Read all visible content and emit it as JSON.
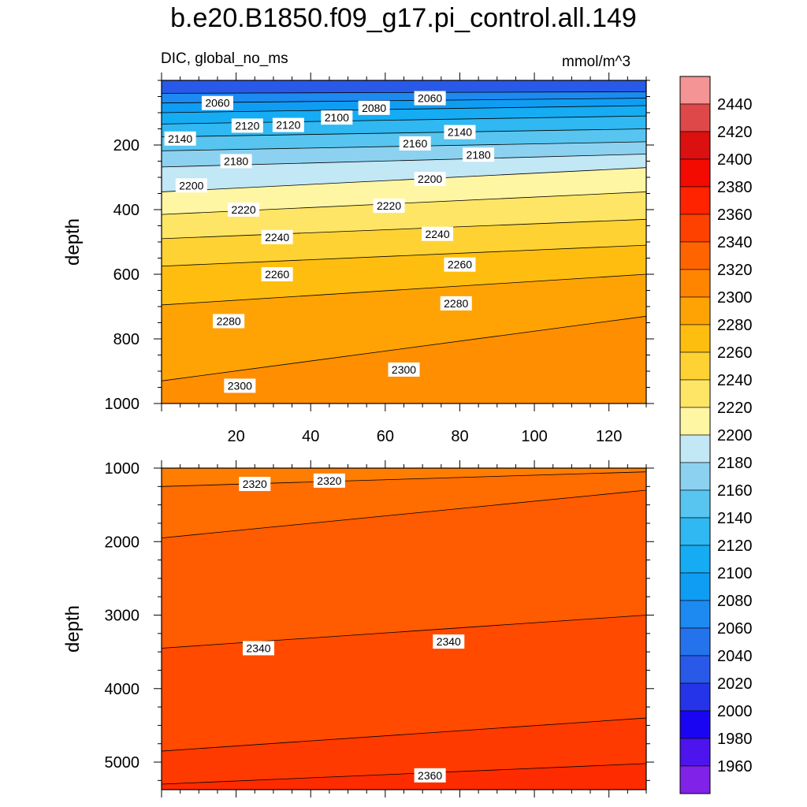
{
  "title": "b.e20.B1850.f09_g17.pi_control.all.149",
  "subtitle_left": "DIC, global_no_ms",
  "subtitle_right": "mmol/m^3",
  "chart_data": [
    {
      "type": "heatmap",
      "panel": "top",
      "variable": "DIC",
      "region": "global_no_ms",
      "units": "mmol/m^3",
      "ylabel": "depth",
      "xlabel": "",
      "xlim": [
        0,
        130
      ],
      "ylim": [
        0,
        1000
      ],
      "y_inverted": true,
      "x_ticks": [
        20,
        40,
        60,
        80,
        100,
        120
      ],
      "y_ticks": [
        200,
        400,
        600,
        800,
        1000
      ],
      "y_tick_labels": [
        "200",
        "400",
        "600",
        "800",
        "1000"
      ],
      "isolines": [
        {
          "level": 2060,
          "y": [
            40,
            35
          ]
        },
        {
          "level": 2080,
          "y": [
            70,
            55
          ]
        },
        {
          "level": 2100,
          "y": [
            100,
            78
          ]
        },
        {
          "level": 2120,
          "y": [
            135,
            110
          ]
        },
        {
          "level": 2140,
          "y": [
            175,
            150
          ]
        },
        {
          "level": 2160,
          "y": [
            218,
            190
          ]
        },
        {
          "level": 2180,
          "y": [
            268,
            228
          ]
        },
        {
          "level": 2200,
          "y": [
            345,
            270
          ]
        },
        {
          "level": 2220,
          "y": [
            415,
            345
          ]
        },
        {
          "level": 2240,
          "y": [
            490,
            430
          ]
        },
        {
          "level": 2260,
          "y": [
            575,
            510
          ]
        },
        {
          "level": 2280,
          "y": [
            695,
            600
          ]
        },
        {
          "level": 2300,
          "y": [
            930,
            730
          ]
        }
      ],
      "contour_labels": [
        {
          "text": "2060",
          "x": 15,
          "y": 70
        },
        {
          "text": "2080",
          "x": 57,
          "y": 85
        },
        {
          "text": "2060",
          "x": 72,
          "y": 55
        },
        {
          "text": "2100",
          "x": 47,
          "y": 115
        },
        {
          "text": "2120",
          "x": 23,
          "y": 140
        },
        {
          "text": "2120",
          "x": 34,
          "y": 138
        },
        {
          "text": "2140",
          "x": 5,
          "y": 180
        },
        {
          "text": "2140",
          "x": 80,
          "y": 160
        },
        {
          "text": "2160",
          "x": 68,
          "y": 195
        },
        {
          "text": "2180",
          "x": 20,
          "y": 250
        },
        {
          "text": "2180",
          "x": 85,
          "y": 230
        },
        {
          "text": "2200",
          "x": 8,
          "y": 325
        },
        {
          "text": "2200",
          "x": 72,
          "y": 305
        },
        {
          "text": "2220",
          "x": 22,
          "y": 400
        },
        {
          "text": "2220",
          "x": 61,
          "y": 388
        },
        {
          "text": "2240",
          "x": 31,
          "y": 485
        },
        {
          "text": "2240",
          "x": 74,
          "y": 475
        },
        {
          "text": "2260",
          "x": 31,
          "y": 600
        },
        {
          "text": "2260",
          "x": 80,
          "y": 570
        },
        {
          "text": "2280",
          "x": 18,
          "y": 745
        },
        {
          "text": "2280",
          "x": 79,
          "y": 690
        },
        {
          "text": "2300",
          "x": 21,
          "y": 945
        },
        {
          "text": "2300",
          "x": 65,
          "y": 895
        }
      ]
    },
    {
      "type": "heatmap",
      "panel": "bottom",
      "variable": "DIC",
      "region": "global_no_ms",
      "units": "mmol/m^3",
      "ylabel": "depth",
      "xlabel": "",
      "xlim": [
        0,
        130
      ],
      "ylim": [
        1000,
        5375
      ],
      "y_inverted": true,
      "x_ticks": [
        20,
        40,
        60,
        80,
        100,
        120
      ],
      "y_ticks": [
        1000,
        2000,
        3000,
        4000,
        5000
      ],
      "y_tick_labels": [
        "1000",
        "2000",
        "3000",
        "4000",
        "5000"
      ],
      "isolines": [
        {
          "level": 2320,
          "y": [
            1250,
            1050
          ]
        },
        {
          "level": 2330,
          "y": [
            1950,
            1300
          ]
        },
        {
          "level": 2340,
          "y": [
            3450,
            3000
          ]
        },
        {
          "level": 2350,
          "y": [
            4850,
            4400
          ]
        },
        {
          "level": 2360,
          "y": [
            5300,
            5020
          ]
        }
      ],
      "contour_labels": [
        {
          "text": "2320",
          "x": 25,
          "y": 1215
        },
        {
          "text": "2320",
          "x": 45,
          "y": 1170
        },
        {
          "text": "2340",
          "x": 26,
          "y": 3450
        },
        {
          "text": "2340",
          "x": 77,
          "y": 3360
        },
        {
          "text": "2360",
          "x": 72,
          "y": 5180
        }
      ]
    }
  ],
  "colorbar": {
    "levels": [
      1960,
      1980,
      2000,
      2020,
      2040,
      2060,
      2080,
      2100,
      2120,
      2140,
      2160,
      2180,
      2200,
      2220,
      2240,
      2260,
      2280,
      2300,
      2320,
      2340,
      2360,
      2380,
      2400,
      2420,
      2440
    ],
    "label_values": [
      "2440",
      "2420",
      "2400",
      "2380",
      "2360",
      "2340",
      "2320",
      "2300",
      "2280",
      "2260",
      "2240",
      "2220",
      "2200",
      "2180",
      "2160",
      "2140",
      "2120",
      "2100",
      "2080",
      "2060",
      "2040",
      "2020",
      "2000",
      "1980",
      "1960"
    ]
  },
  "colors": {
    "background": "#ffffff",
    "axis": "#000000",
    "contour_line": "#000000"
  }
}
